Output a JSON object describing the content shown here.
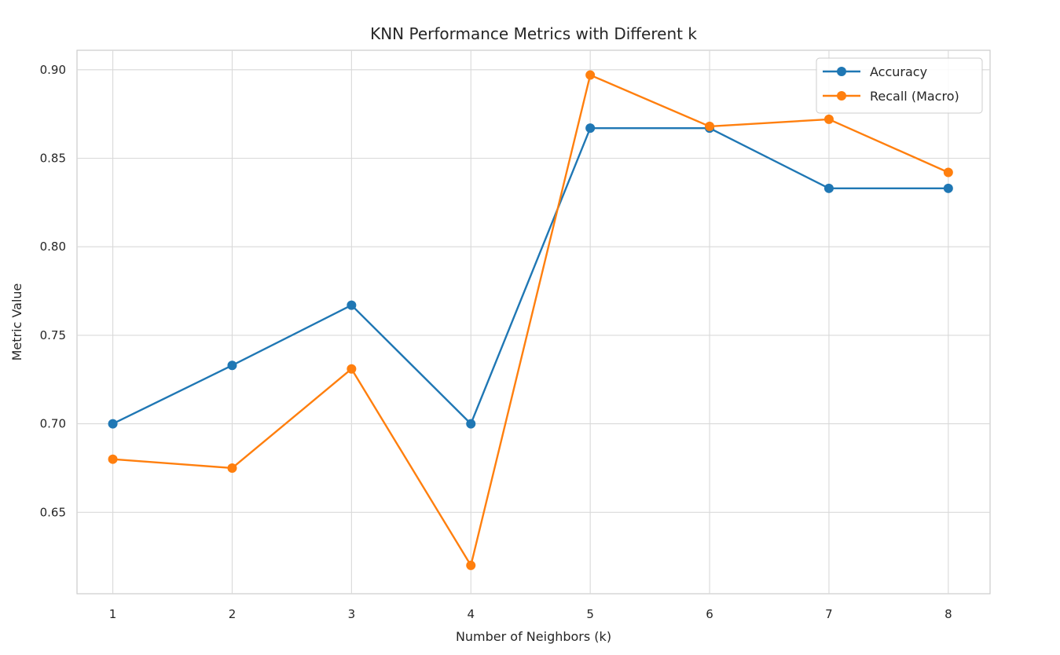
{
  "chart_data": {
    "type": "line",
    "title": "KNN Performance Metrics with Different k",
    "xlabel": "Number of Neighbors (k)",
    "ylabel": "Metric Value",
    "x": [
      1,
      2,
      3,
      4,
      5,
      6,
      7,
      8
    ],
    "xticks": [
      "1",
      "2",
      "3",
      "4",
      "5",
      "6",
      "7",
      "8"
    ],
    "xlim": [
      0.7,
      8.35
    ],
    "ylim": [
      0.604,
      0.911
    ],
    "yticks": [
      "0.65",
      "0.70",
      "0.75",
      "0.80",
      "0.85",
      "0.90"
    ],
    "grid": true,
    "legend_position": "top-right",
    "series": [
      {
        "name": "Accuracy",
        "color": "#1f77b4",
        "marker": "circle",
        "values": [
          0.7,
          0.733,
          0.767,
          0.7,
          0.867,
          0.867,
          0.833,
          0.833
        ]
      },
      {
        "name": "Recall (Macro)",
        "color": "#ff7f0e",
        "marker": "circle",
        "values": [
          0.68,
          0.675,
          0.731,
          0.62,
          0.897,
          0.868,
          0.872,
          0.842
        ]
      }
    ]
  }
}
